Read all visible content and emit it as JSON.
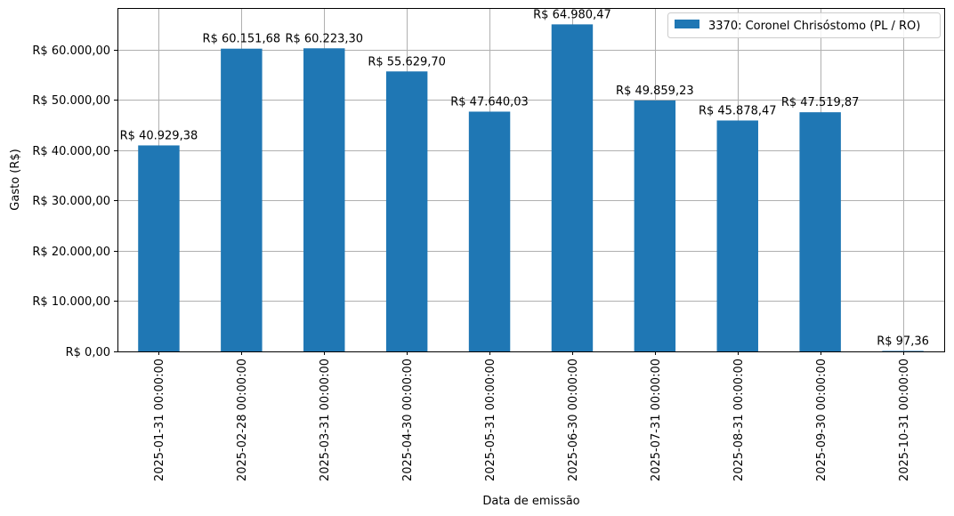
{
  "chart_data": {
    "type": "bar",
    "xlabel": "Data de emissão",
    "ylabel": "Gasto (R$)",
    "ylim": [
      0,
      68229.49
    ],
    "grid": true,
    "legend_position": "top-right",
    "bar_color": "#1f77b4",
    "categories": [
      "2025-01-31 00:00:00",
      "2025-02-28 00:00:00",
      "2025-03-31 00:00:00",
      "2025-04-30 00:00:00",
      "2025-05-31 00:00:00",
      "2025-06-30 00:00:00",
      "2025-07-31 00:00:00",
      "2025-08-31 00:00:00",
      "2025-09-30 00:00:00",
      "2025-10-31 00:00:00"
    ],
    "series": [
      {
        "name": "3370: Coronel Chrisóstomo (PL / RO)",
        "values": [
          40929.38,
          60151.68,
          60223.3,
          55629.7,
          47640.03,
          64980.47,
          49859.23,
          45878.47,
          47519.87,
          97.36
        ]
      }
    ],
    "data_labels": [
      "R$ 40.929,38",
      "R$ 60.151,68",
      "R$ 60.223,30",
      "R$ 55.629,70",
      "R$ 47.640,03",
      "R$ 64.980,47",
      "R$ 49.859,23",
      "R$ 45.878,47",
      "R$ 47.519,87",
      "R$ 97,36"
    ],
    "yticks": [
      0,
      10000,
      20000,
      30000,
      40000,
      50000,
      60000
    ],
    "ytick_labels": [
      "R$ 0,00",
      "R$ 10.000,00",
      "R$ 20.000,00",
      "R$ 30.000,00",
      "R$ 40.000,00",
      "R$ 50.000,00",
      "R$ 60.000,00"
    ]
  }
}
